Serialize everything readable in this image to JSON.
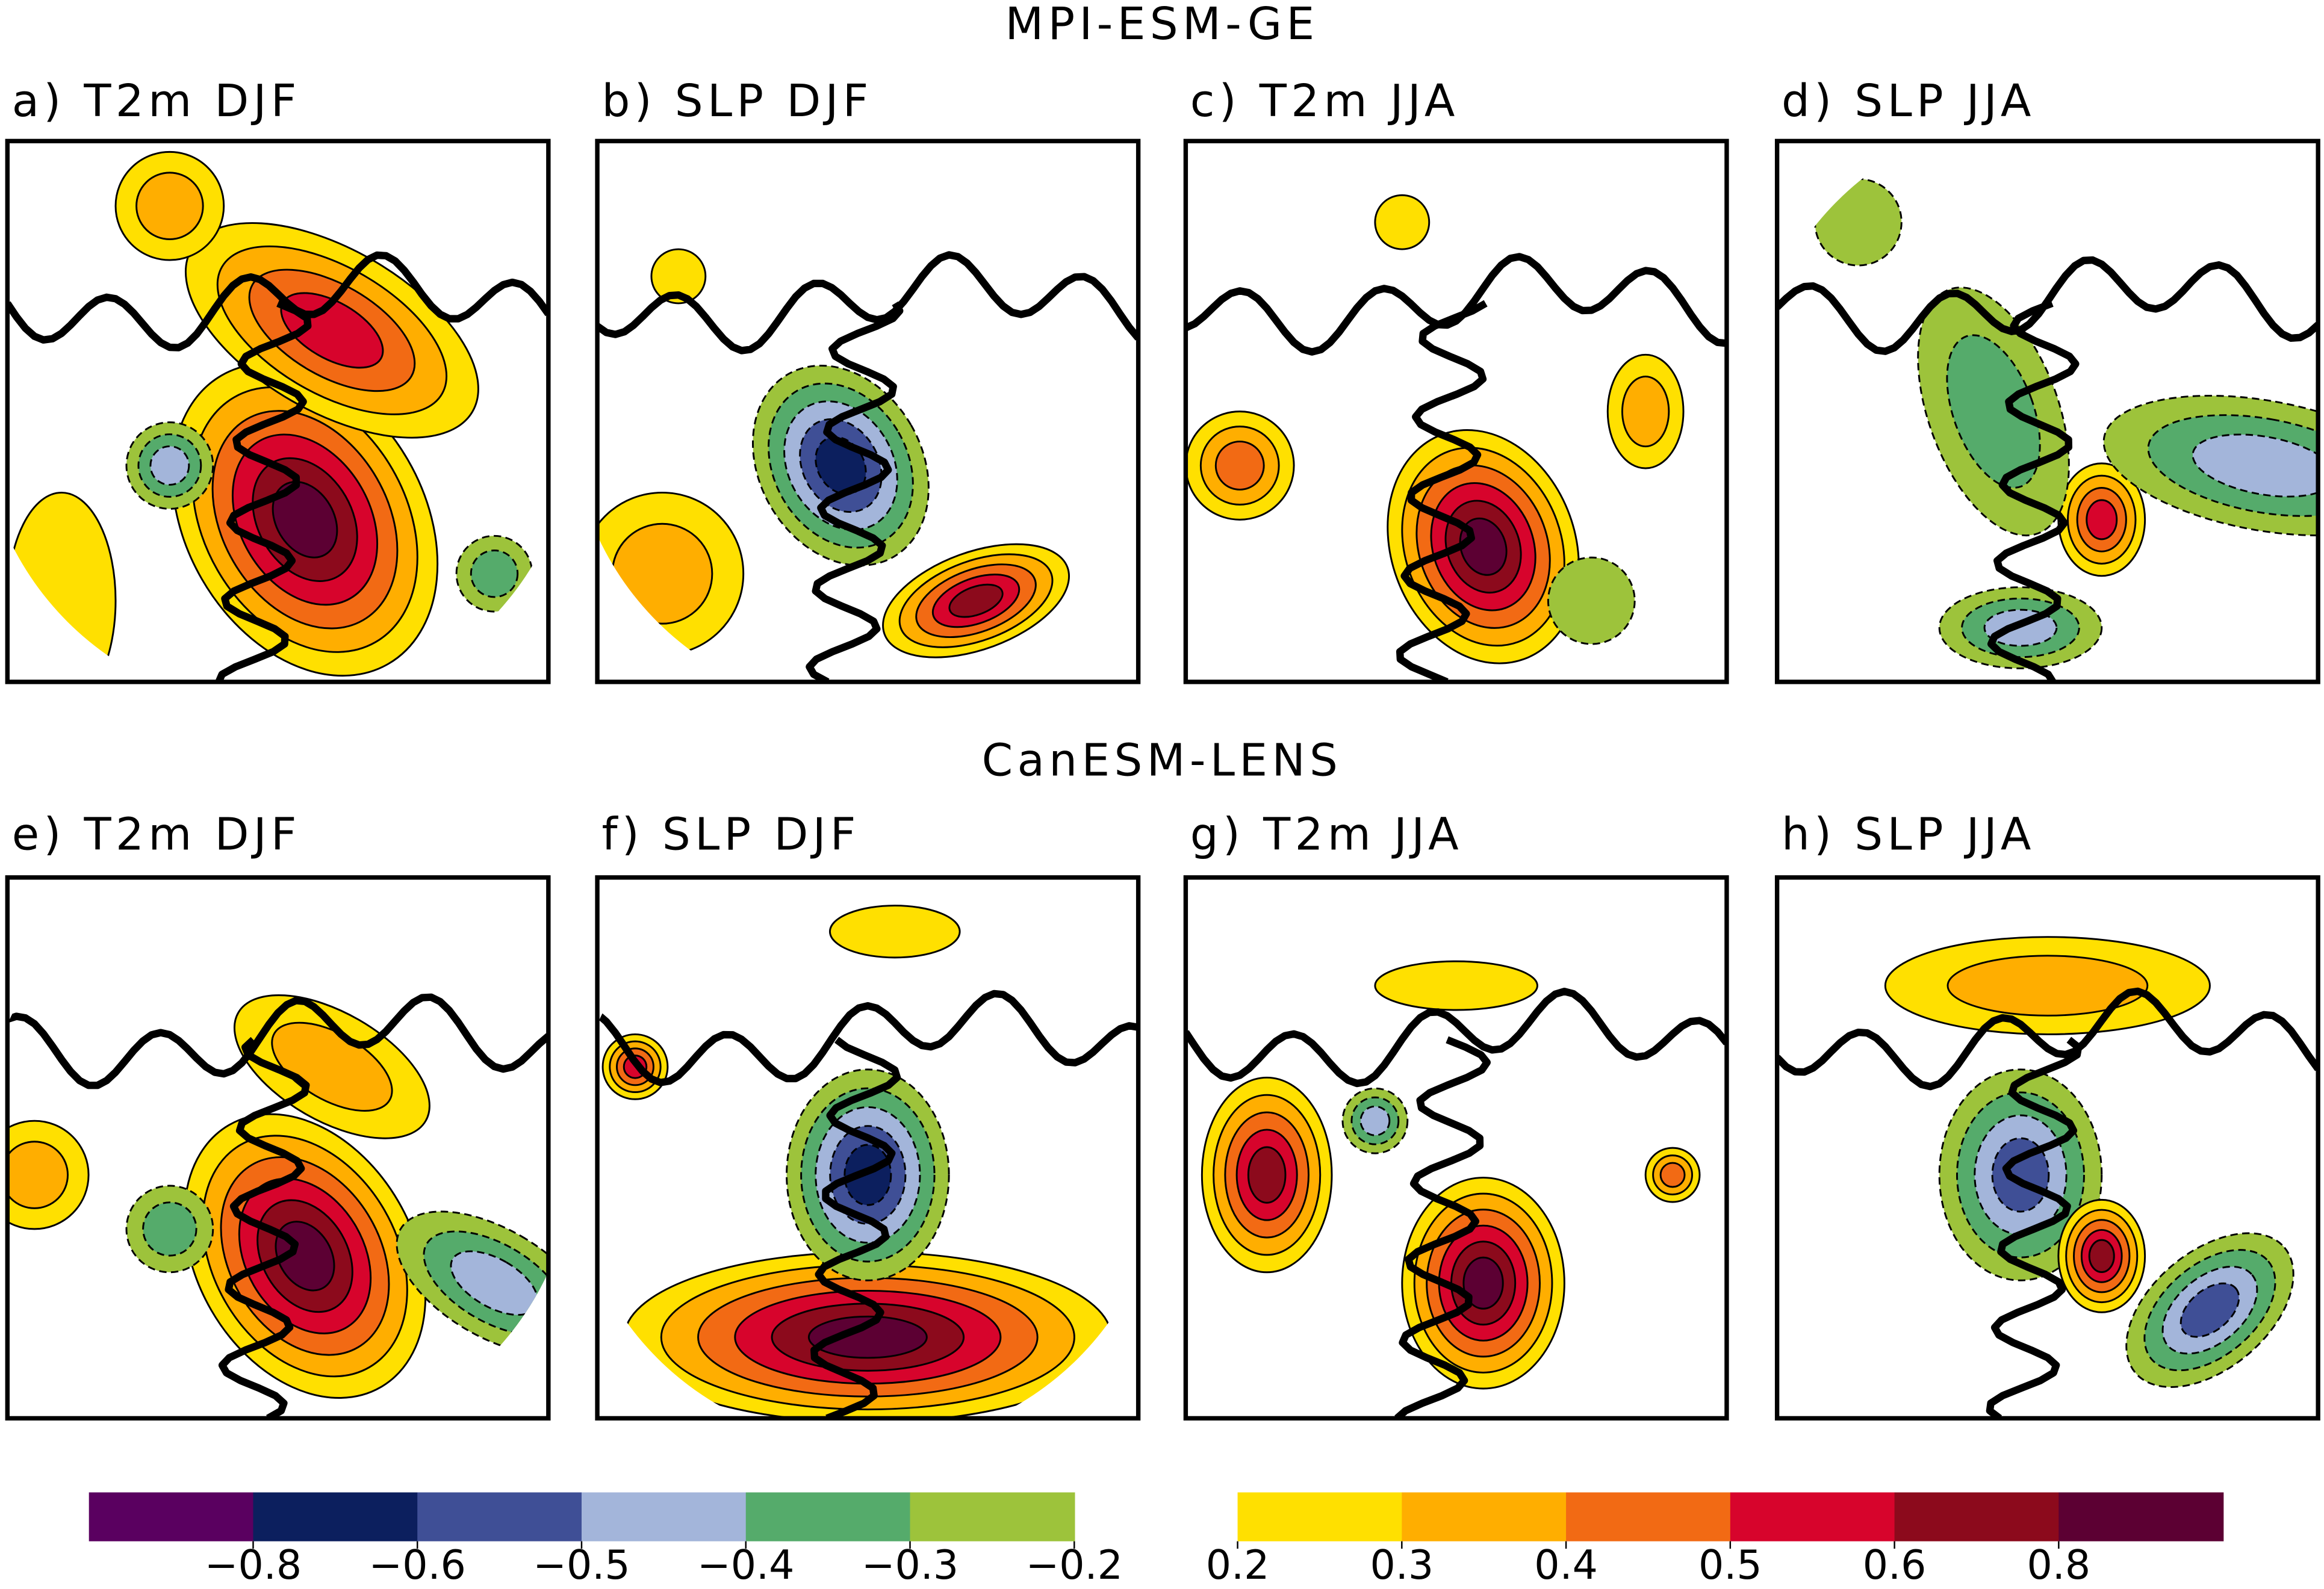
{
  "rows": [
    {
      "title": "MPI-ESM-GE",
      "panels": [
        {
          "label": "a) T2m DJF"
        },
        {
          "label": "b) SLP DJF"
        },
        {
          "label": "c) T2m JJA"
        },
        {
          "label": "d) SLP JJA"
        }
      ]
    },
    {
      "title": "CanESM-LENS",
      "panels": [
        {
          "label": "e) T2m DJF"
        },
        {
          "label": "f) SLP DJF"
        },
        {
          "label": "g) T2m JJA"
        },
        {
          "label": "h) SLP JJA"
        }
      ]
    }
  ],
  "colorbars": [
    {
      "colors": [
        "#5a0060",
        "#0c1f5e",
        "#3f4f96",
        "#a3b5da",
        "#55ab6b",
        "#9dc33b"
      ],
      "ticks": [
        {
          "value": -0.8,
          "label": "−0.8"
        },
        {
          "value": -0.6,
          "label": "−0.6"
        },
        {
          "value": -0.5,
          "label": "−0.5"
        },
        {
          "value": -0.4,
          "label": "−0.4"
        },
        {
          "value": -0.3,
          "label": "−0.3"
        },
        {
          "value": -0.2,
          "label": "−0.2"
        }
      ]
    },
    {
      "colors": [
        "#ffe000",
        "#ffae00",
        "#f26a14",
        "#d7042c",
        "#8c0a1c",
        "#5c0033"
      ],
      "ticks": [
        0.2,
        0.3,
        0.4,
        0.5,
        0.6,
        0.8
      ]
    }
  ]
}
